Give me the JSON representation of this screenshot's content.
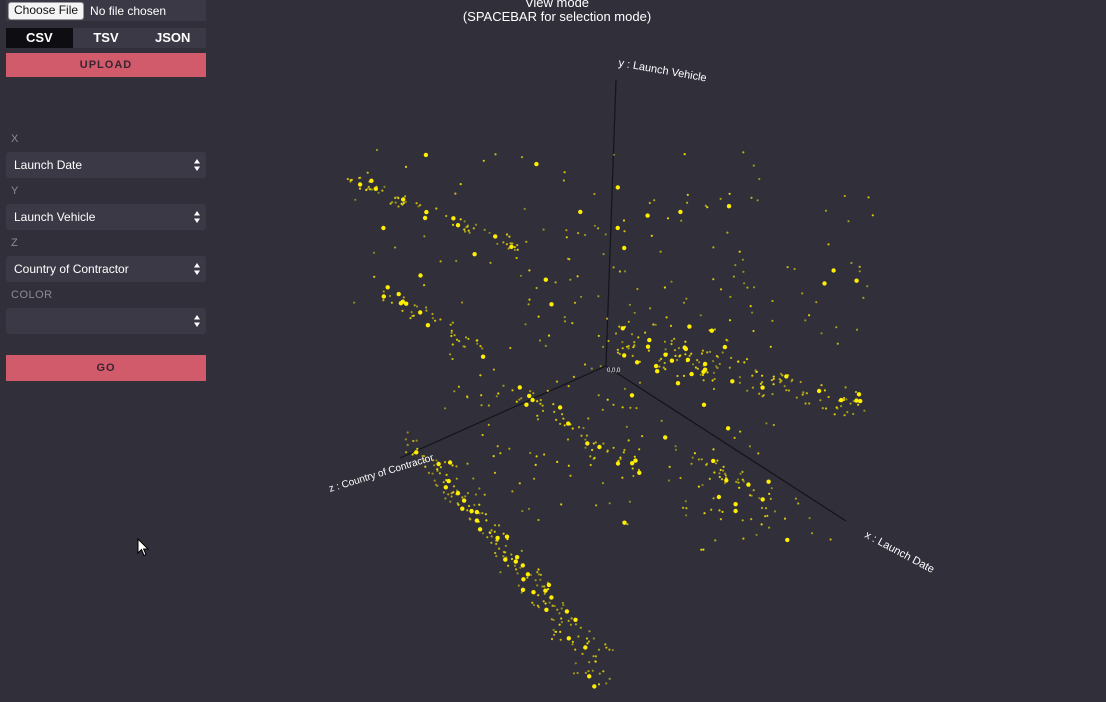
{
  "file_input": {
    "button_label": "Choose File",
    "status": "No file chosen"
  },
  "format_tabs": [
    {
      "label": "CSV",
      "active": true
    },
    {
      "label": "TSV",
      "active": false
    },
    {
      "label": "JSON",
      "active": false
    }
  ],
  "upload_label": "UPLOAD",
  "axes": {
    "x": {
      "label": "X",
      "value": "Launch Date"
    },
    "y": {
      "label": "Y",
      "value": "Launch Vehicle"
    },
    "z": {
      "label": "Z",
      "value": "Country of Contractor"
    },
    "color": {
      "label": "COLOR",
      "value": ""
    }
  },
  "go_label": "GO",
  "mode": {
    "title": "View mode",
    "hint": "(SPACEBAR for selection mode)"
  },
  "plot_axis_labels": {
    "x": "x : Launch Date",
    "y": "y : Launch Vehicle",
    "z": "z : Country of Contractor",
    "origin": "0,0,0"
  },
  "colors": {
    "background": "#302f3a",
    "panel": "#3a3945",
    "accent": "#d25b6b",
    "point": "#ffee00"
  },
  "icons": {
    "select_arrows": "updown-arrows-icon",
    "cursor": "mouse-pointer-icon"
  }
}
